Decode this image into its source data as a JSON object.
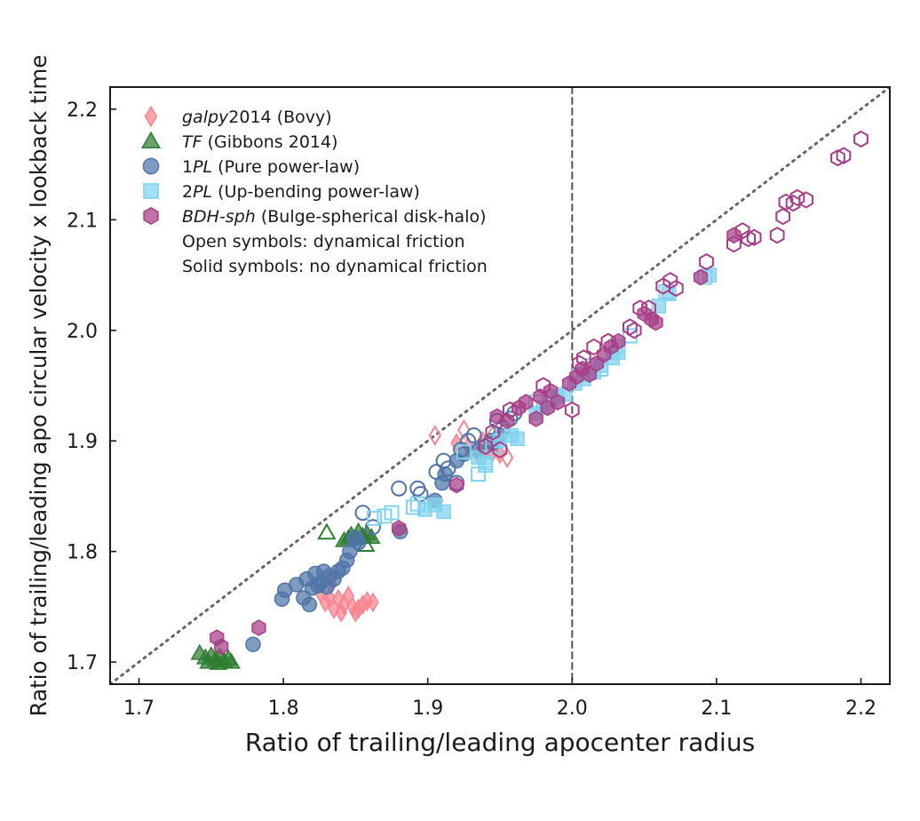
{
  "chart_data": {
    "type": "scatter",
    "title": "",
    "xlabel": "Ratio of trailing/leading apocenter radius",
    "ylabel": "Ratio of trailing/leading apo circular velocity x lookback time",
    "xlim": [
      1.68,
      2.22
    ],
    "ylim": [
      1.68,
      2.22
    ],
    "xticks": [
      "1.7",
      "1.8",
      "1.9",
      "2.0",
      "2.1",
      "2.2"
    ],
    "yticks": [
      "1.7",
      "1.8",
      "1.9",
      "2.0",
      "2.1",
      "2.2"
    ],
    "grid": false,
    "legend_position": "top-left",
    "reference_lines": [
      {
        "kind": "diagonal",
        "style": "dotted",
        "color": "#666666",
        "from": [
          1.68,
          1.68
        ],
        "to": [
          2.22,
          2.22
        ]
      },
      {
        "kind": "vertical",
        "style": "dashed",
        "color": "#555555",
        "x": 2.0
      }
    ],
    "legend_notes": [
      "Open symbols: dynamical friction",
      "Solid symbols: no dynamical friction"
    ],
    "series": [
      {
        "id": "galpy",
        "name": "galpy2014 (Bovy)",
        "name_italic": "galpy",
        "name_rest": "2014 (Bovy)",
        "marker": "diamond",
        "color": "#f7848f",
        "filled": [
          [
            1.826,
            1.762
          ],
          [
            1.829,
            1.754
          ],
          [
            1.832,
            1.758
          ],
          [
            1.835,
            1.748
          ],
          [
            1.838,
            1.757
          ],
          [
            1.842,
            1.752
          ],
          [
            1.845,
            1.76
          ],
          [
            1.848,
            1.75
          ],
          [
            1.852,
            1.748
          ],
          [
            1.855,
            1.752
          ],
          [
            1.858,
            1.755
          ],
          [
            1.862,
            1.754
          ],
          [
            1.833,
            1.77
          ],
          [
            1.84,
            1.745
          ],
          [
            1.85,
            1.745
          ],
          [
            1.92,
            1.898
          ],
          [
            1.928,
            1.895
          ],
          [
            1.935,
            1.888
          ],
          [
            1.94,
            1.892
          ],
          [
            1.945,
            1.89
          ],
          [
            1.95,
            1.888
          ],
          [
            1.938,
            1.9
          ]
        ],
        "open": [
          [
            1.905,
            1.905
          ],
          [
            1.925,
            1.91
          ],
          [
            1.945,
            1.905
          ],
          [
            1.942,
            1.898
          ],
          [
            1.955,
            1.885
          ]
        ]
      },
      {
        "id": "tf",
        "name": "TF (Gibbons 2014)",
        "name_italic": "TF",
        "name_rest": " (Gibbons 2014)",
        "marker": "triangle",
        "color": "#2e7d32",
        "filled": [
          [
            1.742,
            1.708
          ],
          [
            1.746,
            1.704
          ],
          [
            1.75,
            1.706
          ],
          [
            1.753,
            1.702
          ],
          [
            1.756,
            1.705
          ],
          [
            1.759,
            1.701
          ],
          [
            1.762,
            1.703
          ],
          [
            1.764,
            1.7
          ],
          [
            1.748,
            1.7
          ],
          [
            1.755,
            1.699
          ],
          [
            1.842,
            1.81
          ],
          [
            1.845,
            1.812
          ],
          [
            1.847,
            1.815
          ],
          [
            1.85,
            1.812
          ],
          [
            1.852,
            1.818
          ],
          [
            1.855,
            1.814
          ],
          [
            1.858,
            1.816
          ],
          [
            1.861,
            1.813
          ]
        ],
        "open": [
          [
            1.83,
            1.817
          ],
          [
            1.857,
            1.806
          ]
        ]
      },
      {
        "id": "1pl",
        "name": "1PL (Pure power-law)",
        "name_pre": "1",
        "name_italic": "PL",
        "name_rest": " (Pure power-law)",
        "marker": "circle",
        "color": "#4f74a8",
        "filled": [
          [
            1.779,
            1.716
          ],
          [
            1.799,
            1.757
          ],
          [
            1.801,
            1.765
          ],
          [
            1.809,
            1.77
          ],
          [
            1.814,
            1.758
          ],
          [
            1.816,
            1.775
          ],
          [
            1.818,
            1.752
          ],
          [
            1.82,
            1.767
          ],
          [
            1.822,
            1.78
          ],
          [
            1.824,
            1.769
          ],
          [
            1.826,
            1.772
          ],
          [
            1.828,
            1.782
          ],
          [
            1.83,
            1.768
          ],
          [
            1.832,
            1.778
          ],
          [
            1.835,
            1.775
          ],
          [
            1.838,
            1.782
          ],
          [
            1.841,
            1.785
          ],
          [
            1.844,
            1.792
          ],
          [
            1.846,
            1.8
          ],
          [
            1.849,
            1.812
          ],
          [
            1.852,
            1.808
          ],
          [
            1.881,
            1.818
          ],
          [
            1.905,
            1.846
          ],
          [
            1.91,
            1.862
          ],
          [
            1.912,
            1.87
          ],
          [
            1.92,
            1.882
          ],
          [
            1.925,
            1.888
          ],
          [
            1.935,
            1.891
          ],
          [
            1.945,
            1.898
          ],
          [
            1.95,
            1.905
          ]
        ],
        "open": [
          [
            1.855,
            1.835
          ],
          [
            1.862,
            1.822
          ],
          [
            1.88,
            1.857
          ],
          [
            1.893,
            1.857
          ],
          [
            1.895,
            1.852
          ],
          [
            1.906,
            1.872
          ],
          [
            1.911,
            1.882
          ],
          [
            1.914,
            1.875
          ],
          [
            1.92,
            1.862
          ],
          [
            1.923,
            1.892
          ],
          [
            1.928,
            1.9
          ],
          [
            1.932,
            1.905
          ],
          [
            1.94,
            1.895
          ],
          [
            1.944,
            1.9
          ],
          [
            1.948,
            1.918
          ],
          [
            1.952,
            1.912
          ],
          [
            1.957,
            1.92
          ],
          [
            1.96,
            1.925
          ],
          [
            1.85,
            1.812
          ]
        ]
      },
      {
        "id": "2pl",
        "name": "2PL (Up-bending power-law)",
        "name_pre": "2",
        "name_italic": "PL",
        "name_rest": " (Up-bending power-law)",
        "marker": "square",
        "color": "#7fd3ef",
        "filled": [
          [
            1.898,
            1.838
          ],
          [
            1.905,
            1.842
          ],
          [
            1.911,
            1.836
          ],
          [
            1.935,
            1.885
          ],
          [
            1.94,
            1.88
          ],
          [
            1.95,
            1.9
          ],
          [
            1.958,
            1.905
          ],
          [
            1.962,
            1.902
          ],
          [
            1.975,
            1.925
          ],
          [
            1.98,
            1.93
          ],
          [
            1.985,
            1.935
          ],
          [
            1.99,
            1.94
          ],
          [
            1.995,
            1.942
          ],
          [
            2.002,
            1.952
          ],
          [
            2.008,
            1.956
          ],
          [
            2.015,
            1.962
          ],
          [
            2.02,
            1.968
          ],
          [
            2.028,
            1.975
          ],
          [
            2.032,
            1.98
          ],
          [
            2.06,
            2.022
          ],
          [
            2.067,
            2.033
          ],
          [
            2.095,
            2.05
          ]
        ],
        "open": [
          [
            1.863,
            1.83
          ],
          [
            1.87,
            1.832
          ],
          [
            1.875,
            1.835
          ],
          [
            1.89,
            1.84
          ],
          [
            1.893,
            1.843
          ],
          [
            1.925,
            1.89
          ],
          [
            1.935,
            1.87
          ],
          [
            1.94,
            1.878
          ],
          [
            1.945,
            1.895
          ],
          [
            1.952,
            1.91
          ],
          [
            1.975,
            1.935
          ],
          [
            1.985,
            1.938
          ],
          [
            2.005,
            1.96
          ],
          [
            2.015,
            1.968
          ],
          [
            2.02,
            1.965
          ],
          [
            2.03,
            1.985
          ],
          [
            2.04,
            1.995
          ],
          [
            2.065,
            2.035
          ],
          [
            2.092,
            2.048
          ]
        ]
      },
      {
        "id": "bdh",
        "name": "BDH-sph (Bulge-spherical disk-halo)",
        "name_italic": "BDH-sph",
        "name_rest": " (Bulge-spherical disk-halo)",
        "marker": "hexagon",
        "color": "#a83d87",
        "filled": [
          [
            1.754,
            1.722
          ],
          [
            1.757,
            1.714
          ],
          [
            1.783,
            1.731
          ],
          [
            1.88,
            1.821
          ],
          [
            1.92,
            1.86
          ],
          [
            1.948,
            1.922
          ],
          [
            1.955,
            1.918
          ],
          [
            1.963,
            1.93
          ],
          [
            1.968,
            1.935
          ],
          [
            1.975,
            1.92
          ],
          [
            1.978,
            1.94
          ],
          [
            1.983,
            1.93
          ],
          [
            1.985,
            1.945
          ],
          [
            1.99,
            1.935
          ],
          [
            1.998,
            1.952
          ],
          [
            2.003,
            1.958
          ],
          [
            2.007,
            1.965
          ],
          [
            2.012,
            1.96
          ],
          [
            2.017,
            1.97
          ],
          [
            2.022,
            1.978
          ],
          [
            2.027,
            1.985
          ],
          [
            2.032,
            1.99
          ],
          [
            2.05,
            2.015
          ],
          [
            2.055,
            2.01
          ],
          [
            2.058,
            2.007
          ],
          [
            2.089,
            2.048
          ],
          [
            2.112,
            2.086
          ]
        ],
        "open": [
          [
            1.94,
            1.895
          ],
          [
            1.945,
            1.908
          ],
          [
            1.95,
            1.892
          ],
          [
            1.957,
            1.928
          ],
          [
            1.98,
            1.95
          ],
          [
            2.0,
            1.928
          ],
          [
            2.005,
            1.97
          ],
          [
            2.008,
            1.975
          ],
          [
            2.015,
            1.985
          ],
          [
            2.025,
            1.99
          ],
          [
            2.04,
            2.003
          ],
          [
            2.043,
            2.0
          ],
          [
            2.047,
            2.02
          ],
          [
            2.053,
            2.02
          ],
          [
            2.063,
            2.04
          ],
          [
            2.068,
            2.045
          ],
          [
            2.072,
            2.038
          ],
          [
            2.093,
            2.062
          ],
          [
            2.112,
            2.078
          ],
          [
            2.118,
            2.09
          ],
          [
            2.122,
            2.083
          ],
          [
            2.126,
            2.084
          ],
          [
            2.142,
            2.086
          ],
          [
            2.146,
            2.103
          ],
          [
            2.148,
            2.116
          ],
          [
            2.153,
            2.115
          ],
          [
            2.156,
            2.12
          ],
          [
            2.162,
            2.118
          ],
          [
            2.184,
            2.156
          ],
          [
            2.188,
            2.158
          ],
          [
            2.2,
            2.173
          ]
        ]
      }
    ]
  }
}
